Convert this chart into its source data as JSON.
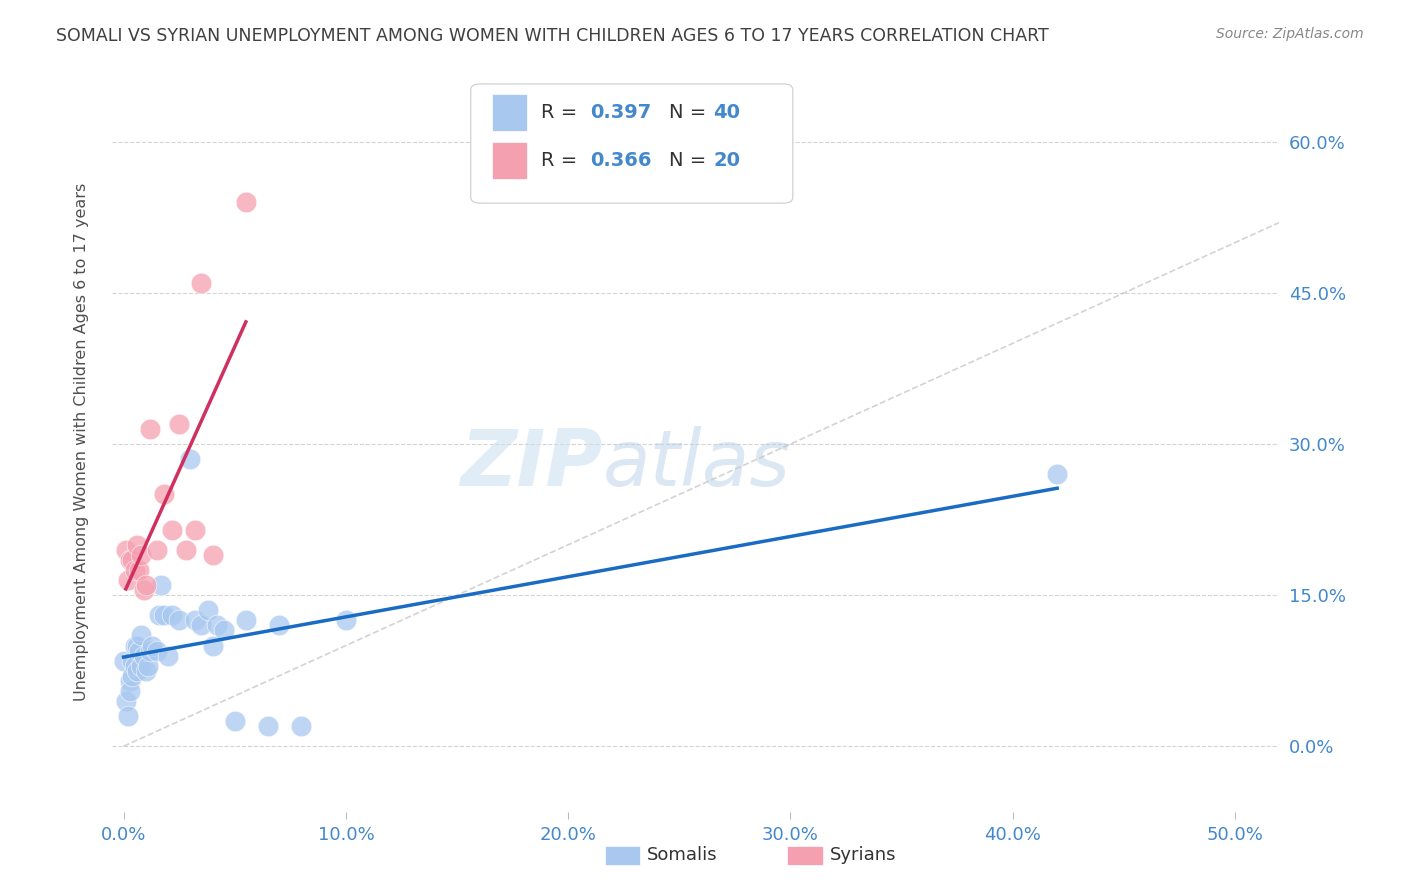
{
  "title": "SOMALI VS SYRIAN UNEMPLOYMENT AMONG WOMEN WITH CHILDREN AGES 6 TO 17 YEARS CORRELATION CHART",
  "source": "Source: ZipAtlas.com",
  "ylabel": "Unemployment Among Women with Children Ages 6 to 17 years",
  "xlim": [
    -0.005,
    0.52
  ],
  "ylim": [
    -0.065,
    0.67
  ],
  "x_tick_vals": [
    0.0,
    0.1,
    0.2,
    0.3,
    0.4,
    0.5
  ],
  "x_tick_labels": [
    "0.0%",
    "10.0%",
    "20.0%",
    "30.0%",
    "40.0%",
    "50.0%"
  ],
  "y_tick_vals": [
    0.0,
    0.15,
    0.3,
    0.45,
    0.6
  ],
  "y_tick_labels_right": [
    "0.0%",
    "15.0%",
    "30.0%",
    "45.0%",
    "60.0%"
  ],
  "somali_x": [
    0.0,
    0.001,
    0.002,
    0.003,
    0.003,
    0.004,
    0.004,
    0.005,
    0.005,
    0.006,
    0.006,
    0.007,
    0.008,
    0.008,
    0.009,
    0.01,
    0.011,
    0.012,
    0.013,
    0.015,
    0.016,
    0.017,
    0.018,
    0.02,
    0.022,
    0.025,
    0.03,
    0.032,
    0.035,
    0.038,
    0.04,
    0.042,
    0.045,
    0.05,
    0.055,
    0.065,
    0.07,
    0.08,
    0.1,
    0.42
  ],
  "somali_y": [
    0.085,
    0.045,
    0.03,
    0.065,
    0.055,
    0.085,
    0.07,
    0.1,
    0.08,
    0.1,
    0.075,
    0.095,
    0.11,
    0.08,
    0.09,
    0.075,
    0.08,
    0.095,
    0.1,
    0.095,
    0.13,
    0.16,
    0.13,
    0.09,
    0.13,
    0.125,
    0.285,
    0.125,
    0.12,
    0.135,
    0.1,
    0.12,
    0.115,
    0.025,
    0.125,
    0.02,
    0.12,
    0.02,
    0.125,
    0.27
  ],
  "syrian_x": [
    0.001,
    0.002,
    0.003,
    0.004,
    0.005,
    0.006,
    0.007,
    0.008,
    0.009,
    0.01,
    0.012,
    0.015,
    0.018,
    0.022,
    0.025,
    0.028,
    0.032,
    0.035,
    0.04,
    0.055
  ],
  "syrian_y": [
    0.195,
    0.165,
    0.185,
    0.185,
    0.175,
    0.2,
    0.175,
    0.19,
    0.155,
    0.16,
    0.315,
    0.195,
    0.25,
    0.215,
    0.32,
    0.195,
    0.215,
    0.46,
    0.19,
    0.54
  ],
  "somali_color": "#a8c8f0",
  "syrian_color": "#f5a0b0",
  "somali_line_color": "#1a6bc4",
  "syrian_line_color": "#d03060",
  "ref_line_color": "#c8c8c8",
  "grid_color": "#d0d0d0",
  "title_color": "#404040",
  "axis_label_color": "#4488cc",
  "right_axis_color": "#4488cc",
  "background_color": "#ffffff",
  "watermark_color": "#d8edf8",
  "legend_label_somali": "Somalis",
  "legend_label_syrian": "Syrians"
}
